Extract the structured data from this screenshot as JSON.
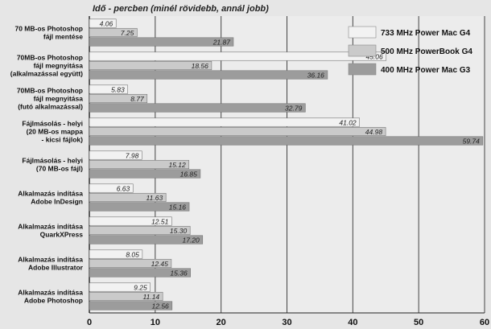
{
  "chart_data": {
    "type": "bar",
    "orientation": "horizontal",
    "title": "Idő - percben (minél rövidebb, annál jobb)",
    "xlabel": "",
    "ylabel": "",
    "xlim": [
      0,
      60
    ],
    "xticks": [
      0,
      10,
      20,
      30,
      40,
      50,
      60
    ],
    "grid": true,
    "legend_position": "top-right",
    "categories": [
      [
        "70 MB-os Photoshop",
        "fájl mentése"
      ],
      [
        "70MB-os Photoshop",
        "fájl megnyitása",
        "(alkalmazással együtt)"
      ],
      [
        "70MB-os Photoshop",
        "fájl megnyitása",
        "(futó alkalmazással)"
      ],
      [
        "Fájlmásolás - helyi",
        "(20 MB-os mappa",
        "- kicsi fájlok)"
      ],
      [
        "Fájlmásolás - helyi",
        "(70 MB-os fájl)"
      ],
      [
        "Alkalmazás indítása",
        "Adobe InDesign"
      ],
      [
        "Alkalmazás indítása",
        "QuarkXPress"
      ],
      [
        "Alkalmazás indítása",
        "Adobe Illustrator"
      ],
      [
        "Alkalmazás indítása",
        "Adobe Photoshop"
      ]
    ],
    "series": [
      {
        "name": "733 MHz Power Mac G4",
        "color": "#f2f2f2",
        "values": [
          4.06,
          45.06,
          5.83,
          41.02,
          7.98,
          6.63,
          12.51,
          8.05,
          9.25
        ],
        "labels": [
          "4.06",
          "45.06",
          "5.83",
          "41.02",
          "7.98",
          "6.63",
          "12.51",
          "8.05",
          "9.25"
        ]
      },
      {
        "name": "500 MHz PowerBook G4",
        "color": "#cacaca",
        "values": [
          7.25,
          18.56,
          8.77,
          44.98,
          15.12,
          11.63,
          15.3,
          12.45,
          11.14
        ],
        "labels": [
          "7.25",
          "18.56",
          "8.77",
          "44.98",
          "15.12",
          "11.63",
          "15.30",
          "12.45",
          "11.14"
        ]
      },
      {
        "name": "400 MHz Power Mac G3",
        "color": "#9c9c9c",
        "values": [
          21.87,
          36.16,
          32.79,
          59.74,
          16.85,
          15.16,
          17.2,
          15.36,
          12.56
        ],
        "labels": [
          "21.87",
          "36.16",
          "32.79",
          "59.74",
          "16.85",
          "15.16",
          "17.20",
          "15.36",
          "12.56"
        ]
      }
    ]
  }
}
